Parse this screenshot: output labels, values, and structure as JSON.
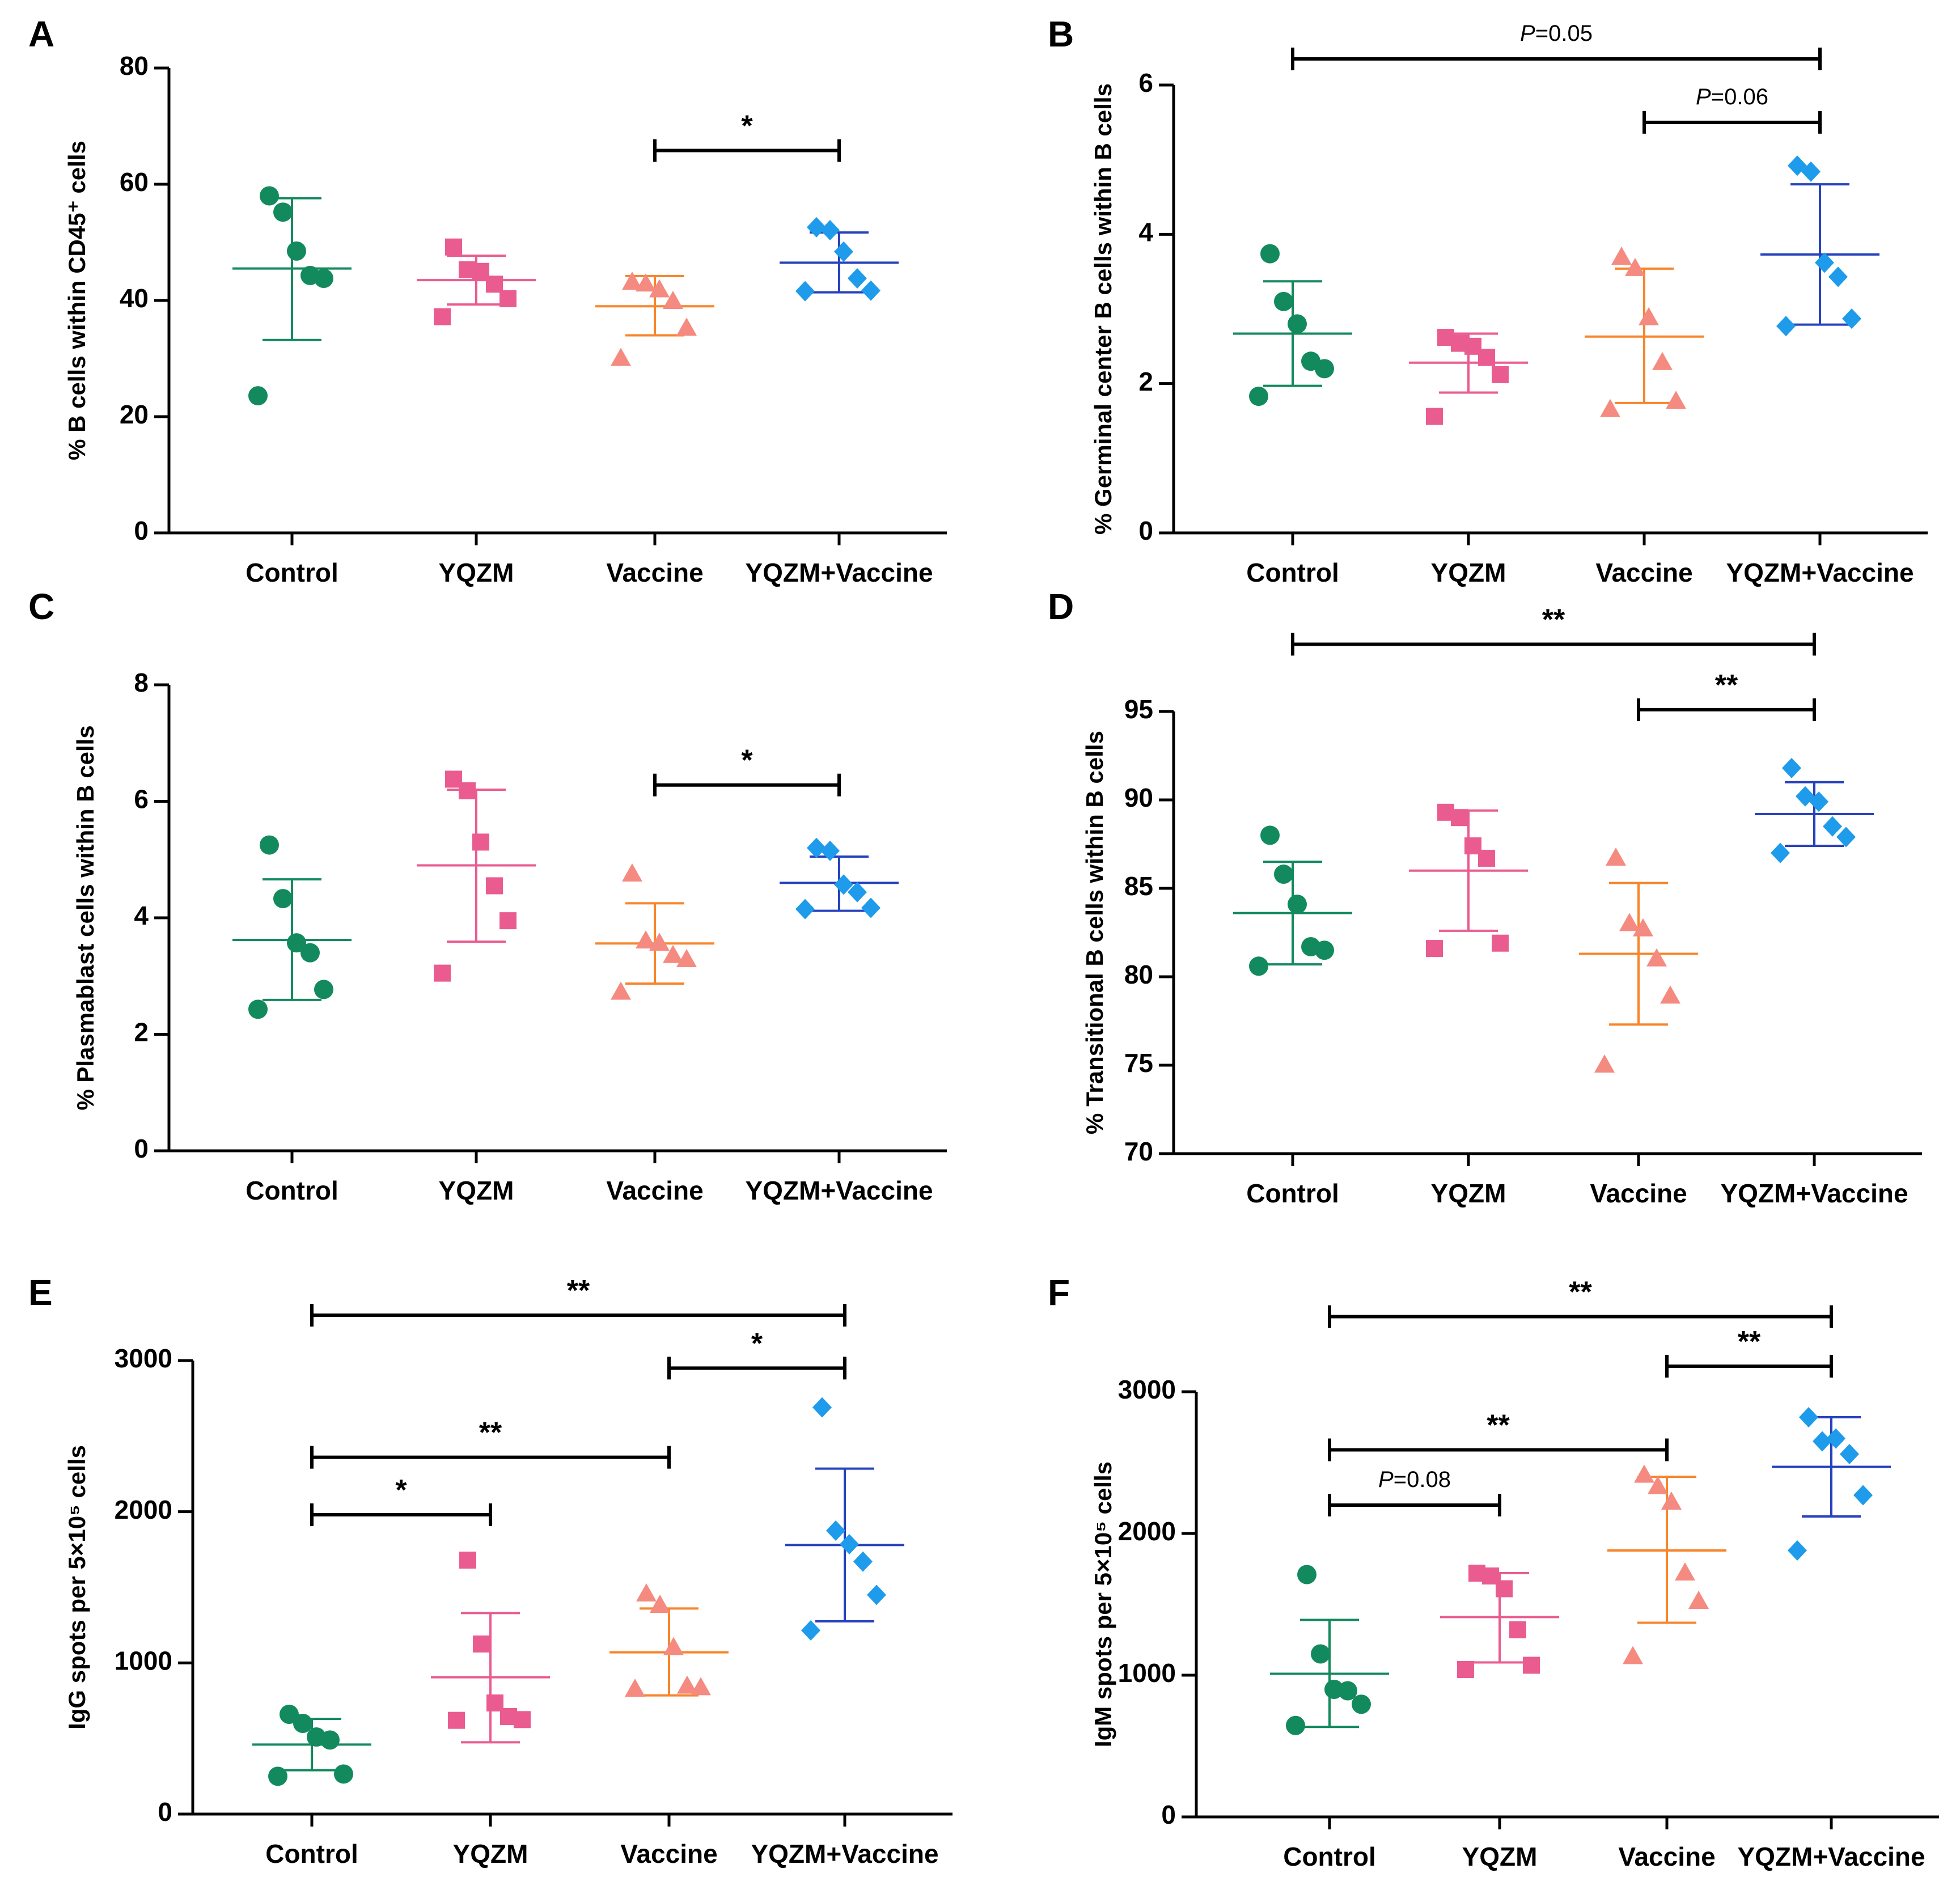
{
  "colors": {
    "control": "#138A5E",
    "yqzm": "#EA5C90",
    "vaccine": "#F58A80",
    "vaccine_line": "#F8852B",
    "combo": "#1E9BEB",
    "combo_line": "#2742BE",
    "axis": "#000000"
  },
  "chart_data": [
    {
      "panel": "A",
      "type": "scatter",
      "ylabel": "% B cells within CD45⁺ cells",
      "ylim": [
        0,
        80
      ],
      "yticks": [
        0,
        20,
        40,
        60,
        80
      ],
      "categories": [
        "Control",
        "YQZM",
        "Vaccine",
        "YQZM+Vaccine"
      ],
      "series": [
        {
          "name": "Control",
          "marker": "circle",
          "mean": 45.5,
          "sd": [
            33.2,
            57.6
          ],
          "points": [
            58.0,
            55.2,
            48.5,
            44.3,
            43.8,
            23.6
          ]
        },
        {
          "name": "YQZM",
          "marker": "square",
          "mean": 43.5,
          "sd": [
            39.3,
            47.7
          ],
          "points": [
            49.2,
            45.3,
            45.0,
            42.8,
            40.3,
            37.2
          ]
        },
        {
          "name": "Vaccine",
          "marker": "triangle",
          "mean": 39.0,
          "sd": [
            34.0,
            44.2
          ],
          "points": [
            43.1,
            42.8,
            41.8,
            39.8,
            35.2,
            30.0
          ]
        },
        {
          "name": "YQZM+Vaccine",
          "marker": "diamond",
          "mean": 46.5,
          "sd": [
            41.4,
            51.7
          ],
          "points": [
            52.6,
            52.1,
            48.4,
            43.8,
            41.7,
            41.6
          ]
        }
      ],
      "brackets": [
        {
          "from": "Vaccine",
          "to": "YQZM+Vaccine",
          "y": 65.8,
          "label": "*"
        }
      ]
    },
    {
      "panel": "B",
      "type": "scatter",
      "ylabel": "% Germinal center B cells within B cells",
      "ylim": [
        0,
        6
      ],
      "yticks": [
        0,
        2,
        4,
        6
      ],
      "categories": [
        "Control",
        "YQZM",
        "Vaccine",
        "YQZM+Vaccine"
      ],
      "series": [
        {
          "name": "Control",
          "marker": "circle",
          "mean": 2.67,
          "sd": [
            1.97,
            3.37
          ],
          "points": [
            3.74,
            3.1,
            2.8,
            2.3,
            2.2,
            1.83
          ]
        },
        {
          "name": "YQZM",
          "marker": "square",
          "mean": 2.28,
          "sd": [
            1.88,
            2.67
          ],
          "points": [
            2.62,
            2.54,
            2.5,
            2.35,
            2.12,
            1.56
          ]
        },
        {
          "name": "Vaccine",
          "marker": "triangle",
          "mean": 2.63,
          "sd": [
            1.74,
            3.54
          ],
          "points": [
            3.69,
            3.54,
            2.88,
            2.28,
            1.76,
            1.65
          ]
        },
        {
          "name": "YQZM+Vaccine",
          "marker": "diamond",
          "mean": 3.73,
          "sd": [
            2.79,
            4.67
          ],
          "points": [
            4.92,
            4.84,
            3.62,
            3.43,
            2.87,
            2.77
          ]
        }
      ],
      "brackets": [
        {
          "from": "Control",
          "to": "YQZM+Vaccine",
          "y": 6.35,
          "label": "P=0.05"
        },
        {
          "from": "Vaccine",
          "to": "YQZM+Vaccine",
          "y": 5.5,
          "label": "P=0.06"
        }
      ]
    },
    {
      "panel": "C",
      "type": "scatter",
      "ylabel": "% Plasmablast cells within B cells",
      "ylim": [
        0,
        8
      ],
      "yticks": [
        0,
        2,
        4,
        6,
        8
      ],
      "categories": [
        "Control",
        "YQZM",
        "Vaccine",
        "YQZM+Vaccine"
      ],
      "series": [
        {
          "name": "Control",
          "marker": "circle",
          "mean": 3.62,
          "sd": [
            2.59,
            4.66
          ],
          "points": [
            5.25,
            4.33,
            3.57,
            3.4,
            2.77,
            2.43
          ]
        },
        {
          "name": "YQZM",
          "marker": "square",
          "mean": 4.9,
          "sd": [
            3.59,
            6.2
          ],
          "points": [
            6.38,
            6.18,
            5.3,
            4.55,
            3.95,
            3.05
          ]
        },
        {
          "name": "Vaccine",
          "marker": "triangle",
          "mean": 3.56,
          "sd": [
            2.87,
            4.25
          ],
          "points": [
            4.75,
            3.6,
            3.56,
            3.35,
            3.28,
            2.72
          ]
        },
        {
          "name": "YQZM+Vaccine",
          "marker": "diamond",
          "mean": 4.6,
          "sd": [
            4.12,
            5.05
          ],
          "points": [
            5.2,
            5.15,
            4.57,
            4.44,
            4.17,
            4.15
          ]
        }
      ],
      "brackets": [
        {
          "from": "Vaccine",
          "to": "YQZM+Vaccine",
          "y": 6.28,
          "label": "*"
        }
      ]
    },
    {
      "panel": "D",
      "type": "scatter",
      "ylabel": "% Transitional B cells within B cells",
      "ylim": [
        70,
        95
      ],
      "yticks": [
        70,
        75,
        80,
        85,
        90,
        95
      ],
      "categories": [
        "Control",
        "YQZM",
        "Vaccine",
        "YQZM+Vaccine"
      ],
      "series": [
        {
          "name": "Control",
          "marker": "circle",
          "mean": 83.6,
          "sd": [
            80.7,
            86.5
          ],
          "points": [
            88.0,
            85.8,
            84.1,
            81.7,
            81.5,
            80.6
          ]
        },
        {
          "name": "YQZM",
          "marker": "square",
          "mean": 86.0,
          "sd": [
            82.6,
            89.4
          ],
          "points": [
            89.3,
            89.0,
            87.4,
            86.7,
            81.9,
            81.6
          ]
        },
        {
          "name": "Vaccine",
          "marker": "triangle",
          "mean": 81.3,
          "sd": [
            77.3,
            85.3
          ],
          "points": [
            86.7,
            83.0,
            82.7,
            81.0,
            78.9,
            75.0
          ]
        },
        {
          "name": "YQZM+Vaccine",
          "marker": "diamond",
          "mean": 89.2,
          "sd": [
            87.4,
            91.0
          ],
          "points": [
            91.8,
            90.2,
            89.9,
            88.5,
            87.9,
            87.0
          ]
        }
      ],
      "brackets": [
        {
          "from": "Control",
          "to": "YQZM+Vaccine",
          "y": 98.8,
          "label": "**"
        },
        {
          "from": "Vaccine",
          "to": "YQZM+Vaccine",
          "y": 95.1,
          "label": "**"
        }
      ]
    },
    {
      "panel": "E",
      "type": "scatter",
      "ylabel": "IgG spots per 5×10⁵ cells",
      "ylim": [
        0,
        3000
      ],
      "yticks": [
        0,
        1000,
        2000,
        3000
      ],
      "categories": [
        "Control",
        "YQZM",
        "Vaccine",
        "YQZM+Vaccine"
      ],
      "series": [
        {
          "name": "Control",
          "marker": "circle",
          "mean": 460,
          "sd": [
            290,
            630
          ],
          "points": [
            660,
            600,
            510,
            490,
            265,
            250
          ]
        },
        {
          "name": "YQZM",
          "marker": "square",
          "mean": 905,
          "sd": [
            475,
            1330
          ],
          "points": [
            1680,
            1125,
            735,
            645,
            625,
            620
          ]
        },
        {
          "name": "Vaccine",
          "marker": "triangle",
          "mean": 1070,
          "sd": [
            785,
            1360
          ],
          "points": [
            1455,
            1380,
            1100,
            845,
            835,
            825
          ]
        },
        {
          "name": "YQZM+Vaccine",
          "marker": "diamond",
          "mean": 1780,
          "sd": [
            1275,
            2285
          ],
          "points": [
            2690,
            1875,
            1785,
            1670,
            1450,
            1215
          ]
        }
      ],
      "brackets": [
        {
          "from": "Control",
          "to": "YQZM+Vaccine",
          "y": 3300,
          "label": "**"
        },
        {
          "from": "Vaccine",
          "to": "YQZM+Vaccine",
          "y": 2950,
          "label": "*"
        },
        {
          "from": "Control",
          "to": "Vaccine",
          "y": 2360,
          "label": "**"
        },
        {
          "from": "Control",
          "to": "YQZM",
          "y": 1980,
          "label": "*"
        }
      ]
    },
    {
      "panel": "F",
      "type": "scatter",
      "ylabel": "IgM spots per 5×10⁵ cells",
      "ylim": [
        0,
        3000
      ],
      "yticks": [
        0,
        1000,
        2000,
        3000
      ],
      "categories": [
        "Control",
        "YQZM",
        "Vaccine",
        "YQZM+Vaccine"
      ],
      "series": [
        {
          "name": "Control",
          "marker": "circle",
          "mean": 1010,
          "sd": [
            635,
            1390
          ],
          "points": [
            1710,
            1150,
            900,
            890,
            795,
            645
          ]
        },
        {
          "name": "YQZM",
          "marker": "square",
          "mean": 1410,
          "sd": [
            1090,
            1720
          ],
          "points": [
            1720,
            1700,
            1610,
            1320,
            1070,
            1040
          ]
        },
        {
          "name": "Vaccine",
          "marker": "triangle",
          "mean": 1880,
          "sd": [
            1370,
            2400
          ],
          "points": [
            2410,
            2330,
            2220,
            1720,
            1520,
            1130
          ]
        },
        {
          "name": "YQZM+Vaccine",
          "marker": "diamond",
          "mean": 2470,
          "sd": [
            2120,
            2820
          ],
          "points": [
            2820,
            2650,
            2670,
            2560,
            2270,
            1880
          ]
        }
      ],
      "brackets": [
        {
          "from": "Control",
          "to": "YQZM+Vaccine",
          "y": 3530,
          "label": "**"
        },
        {
          "from": "Vaccine",
          "to": "YQZM+Vaccine",
          "y": 3180,
          "label": "**"
        },
        {
          "from": "Control",
          "to": "Vaccine",
          "y": 2590,
          "label": "**"
        },
        {
          "from": "Control",
          "to": "YQZM",
          "y": 2200,
          "label": "P=0.08"
        }
      ]
    }
  ]
}
